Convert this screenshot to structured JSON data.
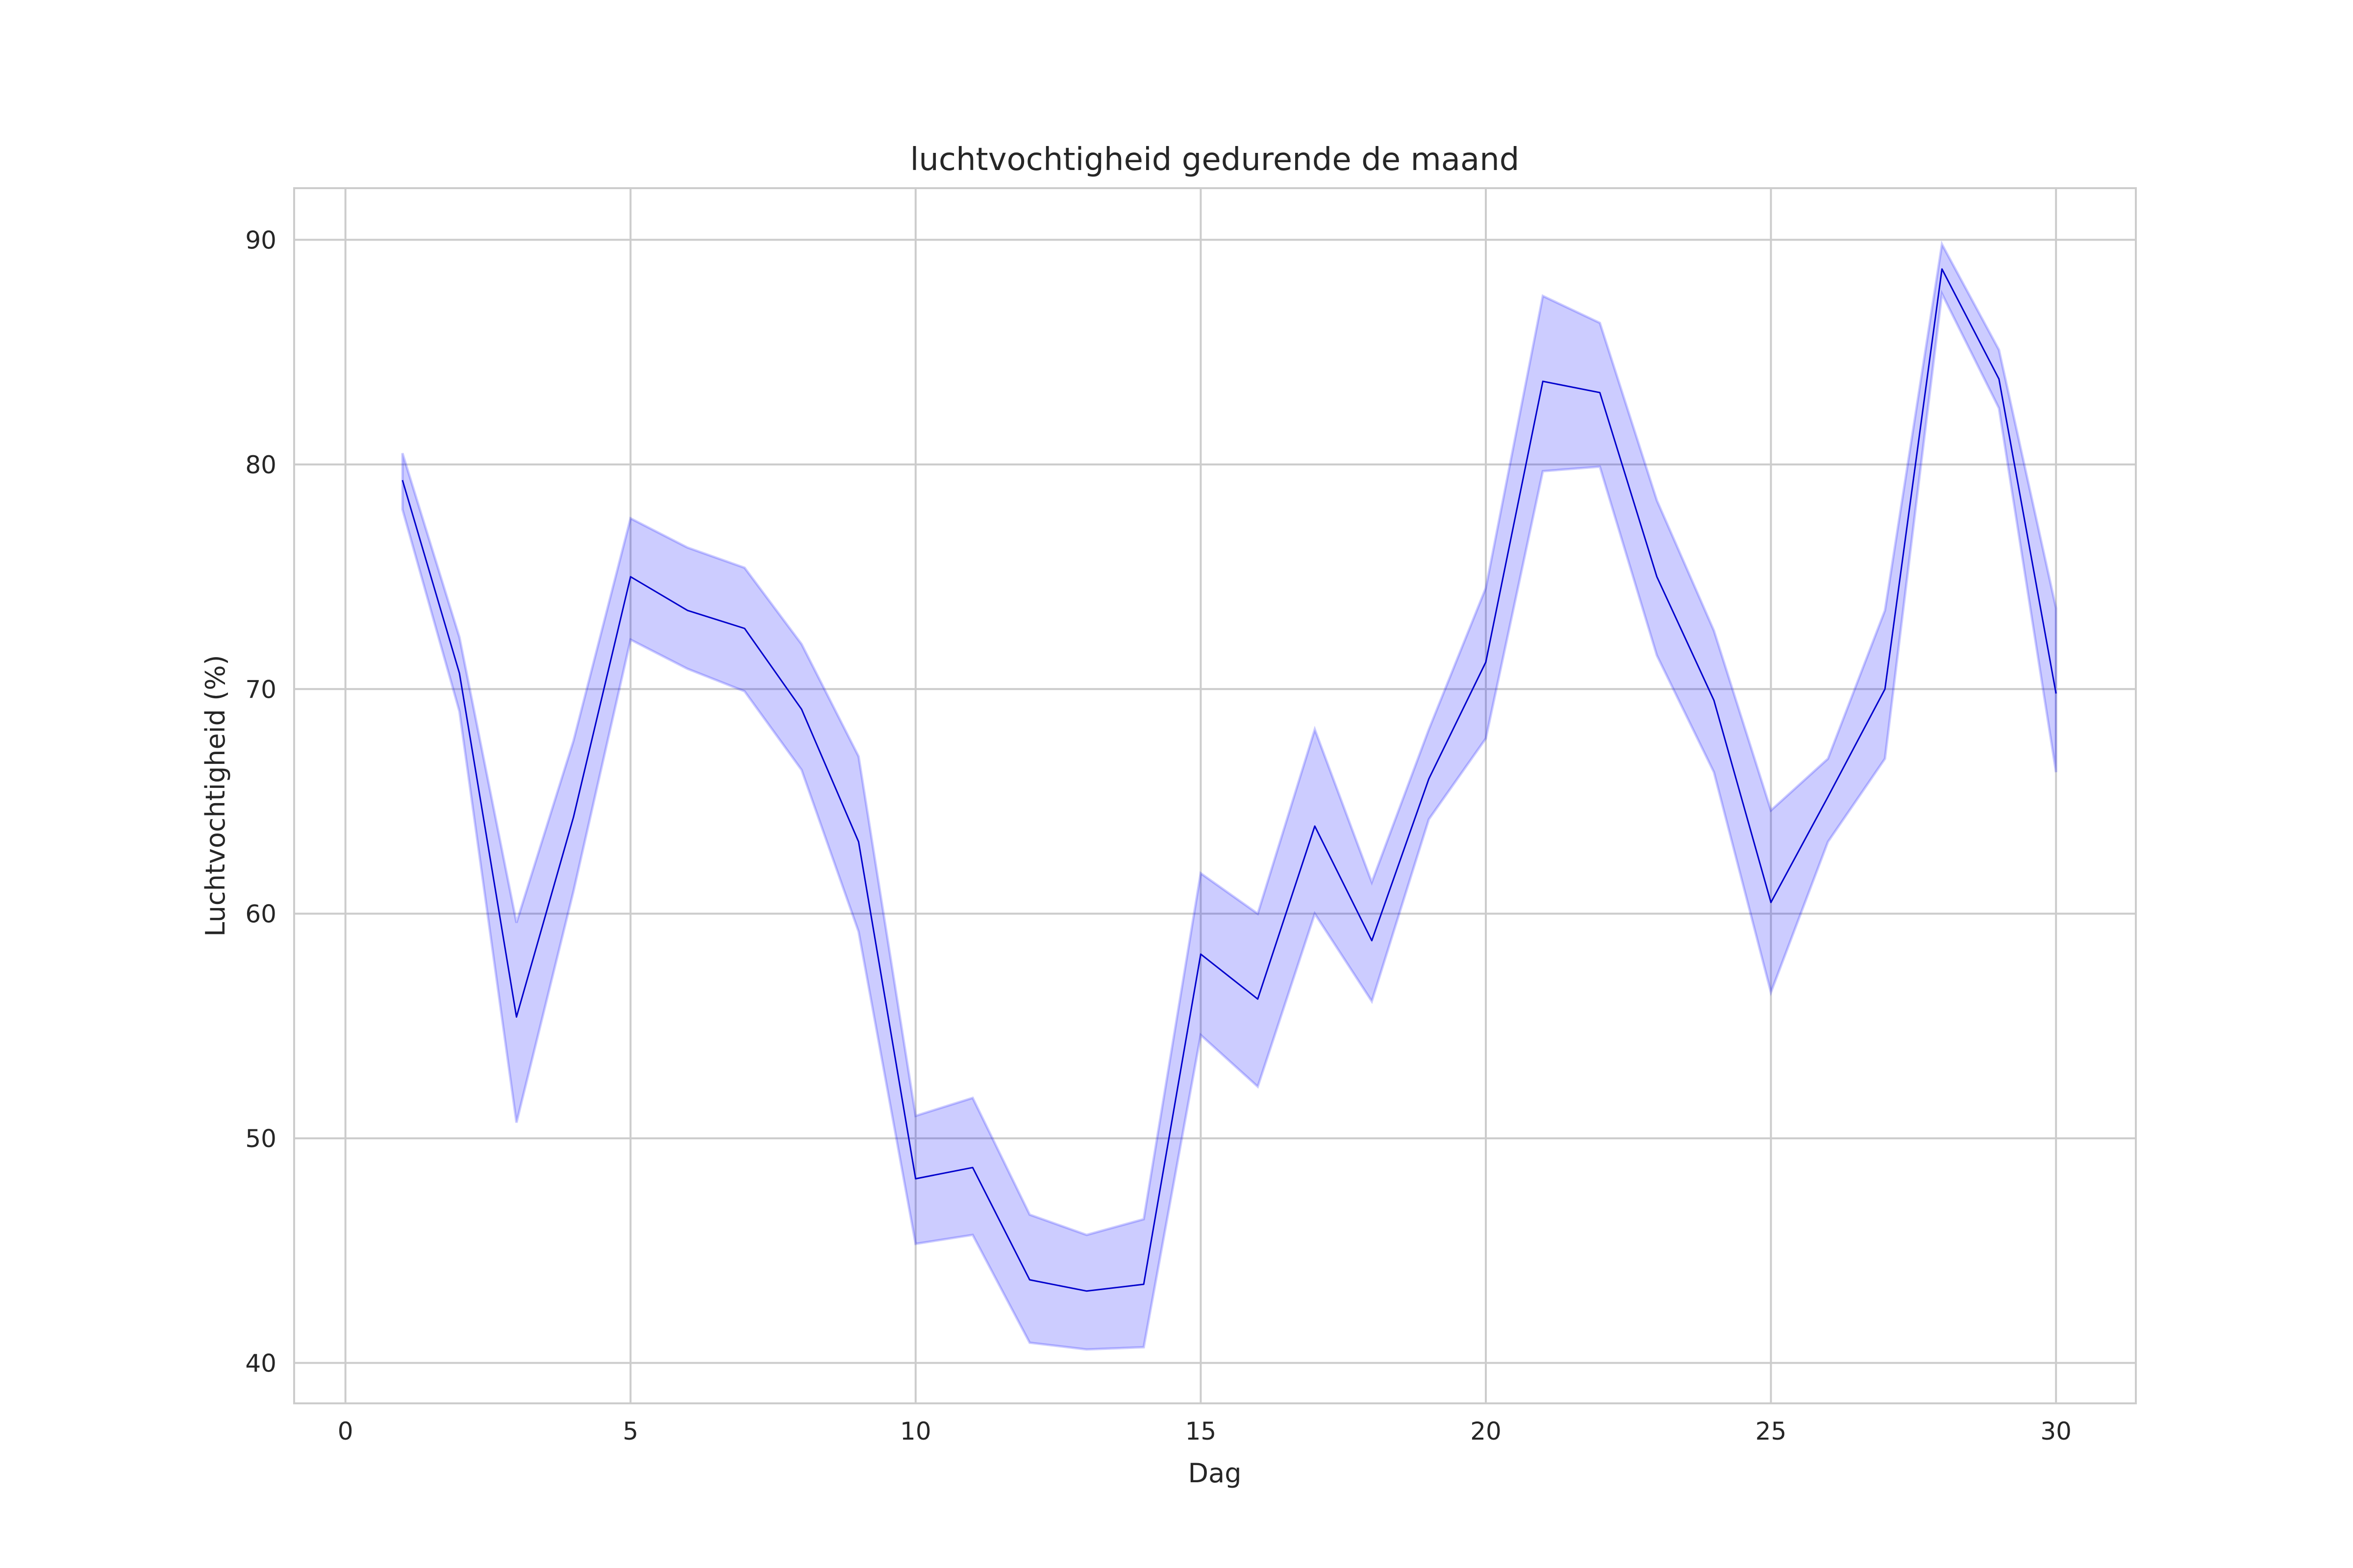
{
  "chart_data": {
    "type": "line",
    "title": "luchtvochtigheid gedurende de maand",
    "xlabel": "Dag",
    "ylabel": "Luchtvochtigheid (%)",
    "xlim": [
      -0.9,
      31.4
    ],
    "ylim": [
      38.2,
      92.3
    ],
    "xticks": [
      0,
      5,
      10,
      15,
      20,
      25,
      30
    ],
    "yticks": [
      40,
      50,
      60,
      70,
      80,
      90
    ],
    "grid": true,
    "legend": "none",
    "colors": {
      "line": "#0000cc",
      "band": "#0000ff"
    },
    "series": [
      {
        "x": [
          1,
          2,
          3,
          4,
          5,
          6,
          7,
          8,
          9,
          10,
          11,
          12,
          13,
          14,
          15,
          16,
          17,
          18,
          19,
          20,
          21,
          22,
          23,
          24,
          25,
          26,
          27,
          28,
          29,
          30
        ],
        "values": [
          79.3,
          70.7,
          55.4,
          64.3,
          75.0,
          73.5,
          72.7,
          69.1,
          63.2,
          48.2,
          48.7,
          43.7,
          43.2,
          43.5,
          58.2,
          56.2,
          63.9,
          58.8,
          66.0,
          71.2,
          83.7,
          83.2,
          75.0,
          69.5,
          60.5,
          65.2,
          70.0,
          88.7,
          83.8,
          69.8
        ],
        "lower": [
          78.0,
          69.0,
          50.7,
          61.0,
          72.2,
          70.9,
          69.9,
          66.4,
          59.2,
          45.3,
          45.7,
          40.9,
          40.6,
          40.7,
          54.6,
          52.3,
          60.0,
          56.1,
          64.2,
          67.8,
          79.7,
          79.9,
          71.5,
          66.3,
          56.5,
          63.2,
          66.9,
          87.6,
          82.5,
          66.3
        ],
        "upper": [
          80.5,
          72.3,
          59.6,
          67.7,
          77.6,
          76.3,
          75.4,
          72.0,
          67.0,
          51.0,
          51.8,
          46.6,
          45.7,
          46.4,
          61.8,
          60.0,
          68.2,
          61.4,
          68.2,
          74.5,
          87.5,
          86.3,
          78.4,
          72.6,
          64.6,
          66.9,
          73.5,
          89.8,
          85.1,
          73.6
        ]
      }
    ]
  }
}
